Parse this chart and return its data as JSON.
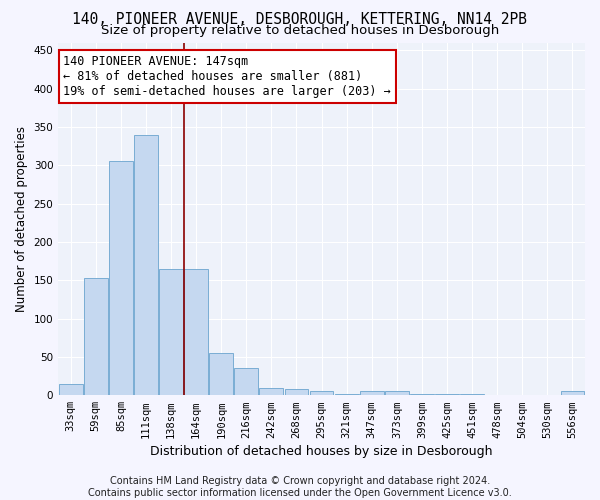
{
  "title": "140, PIONEER AVENUE, DESBOROUGH, KETTERING, NN14 2PB",
  "subtitle": "Size of property relative to detached houses in Desborough",
  "xlabel": "Distribution of detached houses by size in Desborough",
  "ylabel": "Number of detached properties",
  "categories": [
    "33sqm",
    "59sqm",
    "85sqm",
    "111sqm",
    "138sqm",
    "164sqm",
    "190sqm",
    "216sqm",
    "242sqm",
    "268sqm",
    "295sqm",
    "321sqm",
    "347sqm",
    "373sqm",
    "399sqm",
    "425sqm",
    "451sqm",
    "478sqm",
    "504sqm",
    "530sqm",
    "556sqm"
  ],
  "values": [
    15,
    153,
    305,
    340,
    165,
    165,
    55,
    35,
    10,
    8,
    5,
    2,
    5,
    5,
    2,
    1,
    1,
    0,
    0,
    0,
    5
  ],
  "bar_color": "#c5d8f0",
  "bar_edge_color": "#7aadd4",
  "vline_x": 4.5,
  "vline_color": "#8b0000",
  "annotation_text": "140 PIONEER AVENUE: 147sqm\n← 81% of detached houses are smaller (881)\n19% of semi-detached houses are larger (203) →",
  "annotation_box_color": "#ffffff",
  "annotation_box_edge_color": "#cc0000",
  "ylim": [
    0,
    460
  ],
  "yticks": [
    0,
    50,
    100,
    150,
    200,
    250,
    300,
    350,
    400,
    450
  ],
  "footer_line1": "Contains HM Land Registry data © Crown copyright and database right 2024.",
  "footer_line2": "Contains public sector information licensed under the Open Government Licence v3.0.",
  "bg_color": "#eef2fa",
  "grid_color": "#ffffff",
  "title_fontsize": 10.5,
  "subtitle_fontsize": 9.5,
  "xlabel_fontsize": 9,
  "ylabel_fontsize": 8.5,
  "tick_fontsize": 7.5,
  "annotation_fontsize": 8.5,
  "footer_fontsize": 7
}
